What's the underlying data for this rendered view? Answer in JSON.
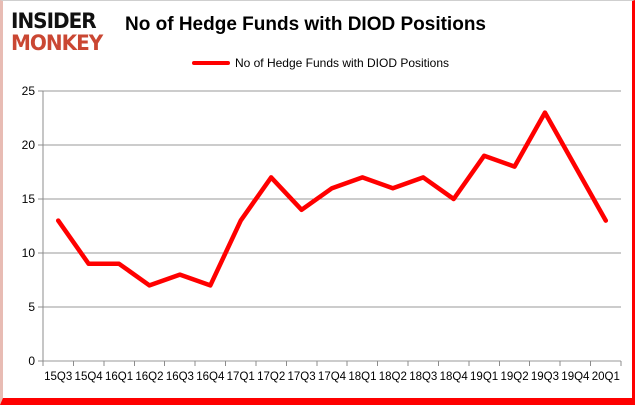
{
  "header": {
    "logo_line1": "INSIDER",
    "logo_line2": "MONKEY",
    "title": "No of Hedge Funds with DIOD Positions"
  },
  "legend": {
    "label": "No of Hedge Funds with DIOD Positions",
    "marker_color": "#FF0000"
  },
  "colors": {
    "line": "#FF0000",
    "grid": "#9a9a9a",
    "axis": "#8c8c8c",
    "tick_text": "#000000",
    "logo_accent": "#CA4733",
    "frame_red": "#FE0000"
  },
  "chart_data": {
    "type": "line",
    "title": "No of Hedge Funds with DIOD Positions",
    "categories": [
      "15Q3",
      "15Q4",
      "16Q1",
      "16Q2",
      "16Q3",
      "16Q4",
      "17Q1",
      "17Q2",
      "17Q3",
      "17Q4",
      "18Q1",
      "18Q2",
      "18Q3",
      "18Q4",
      "19Q1",
      "19Q2",
      "19Q3",
      "19Q4",
      "20Q1"
    ],
    "series": [
      {
        "name": "No of Hedge Funds with DIOD Positions",
        "color": "#FF0000",
        "values": [
          13,
          9,
          9,
          7,
          8,
          7,
          13,
          17,
          14,
          16,
          17,
          16,
          17,
          15,
          19,
          18,
          23,
          18,
          13
        ]
      }
    ],
    "xlabel": "",
    "ylabel": "",
    "ylim": [
      0,
      25
    ],
    "yticks": [
      0,
      5,
      10,
      15,
      20,
      25
    ],
    "grid": true,
    "legend_position": "top-center"
  }
}
